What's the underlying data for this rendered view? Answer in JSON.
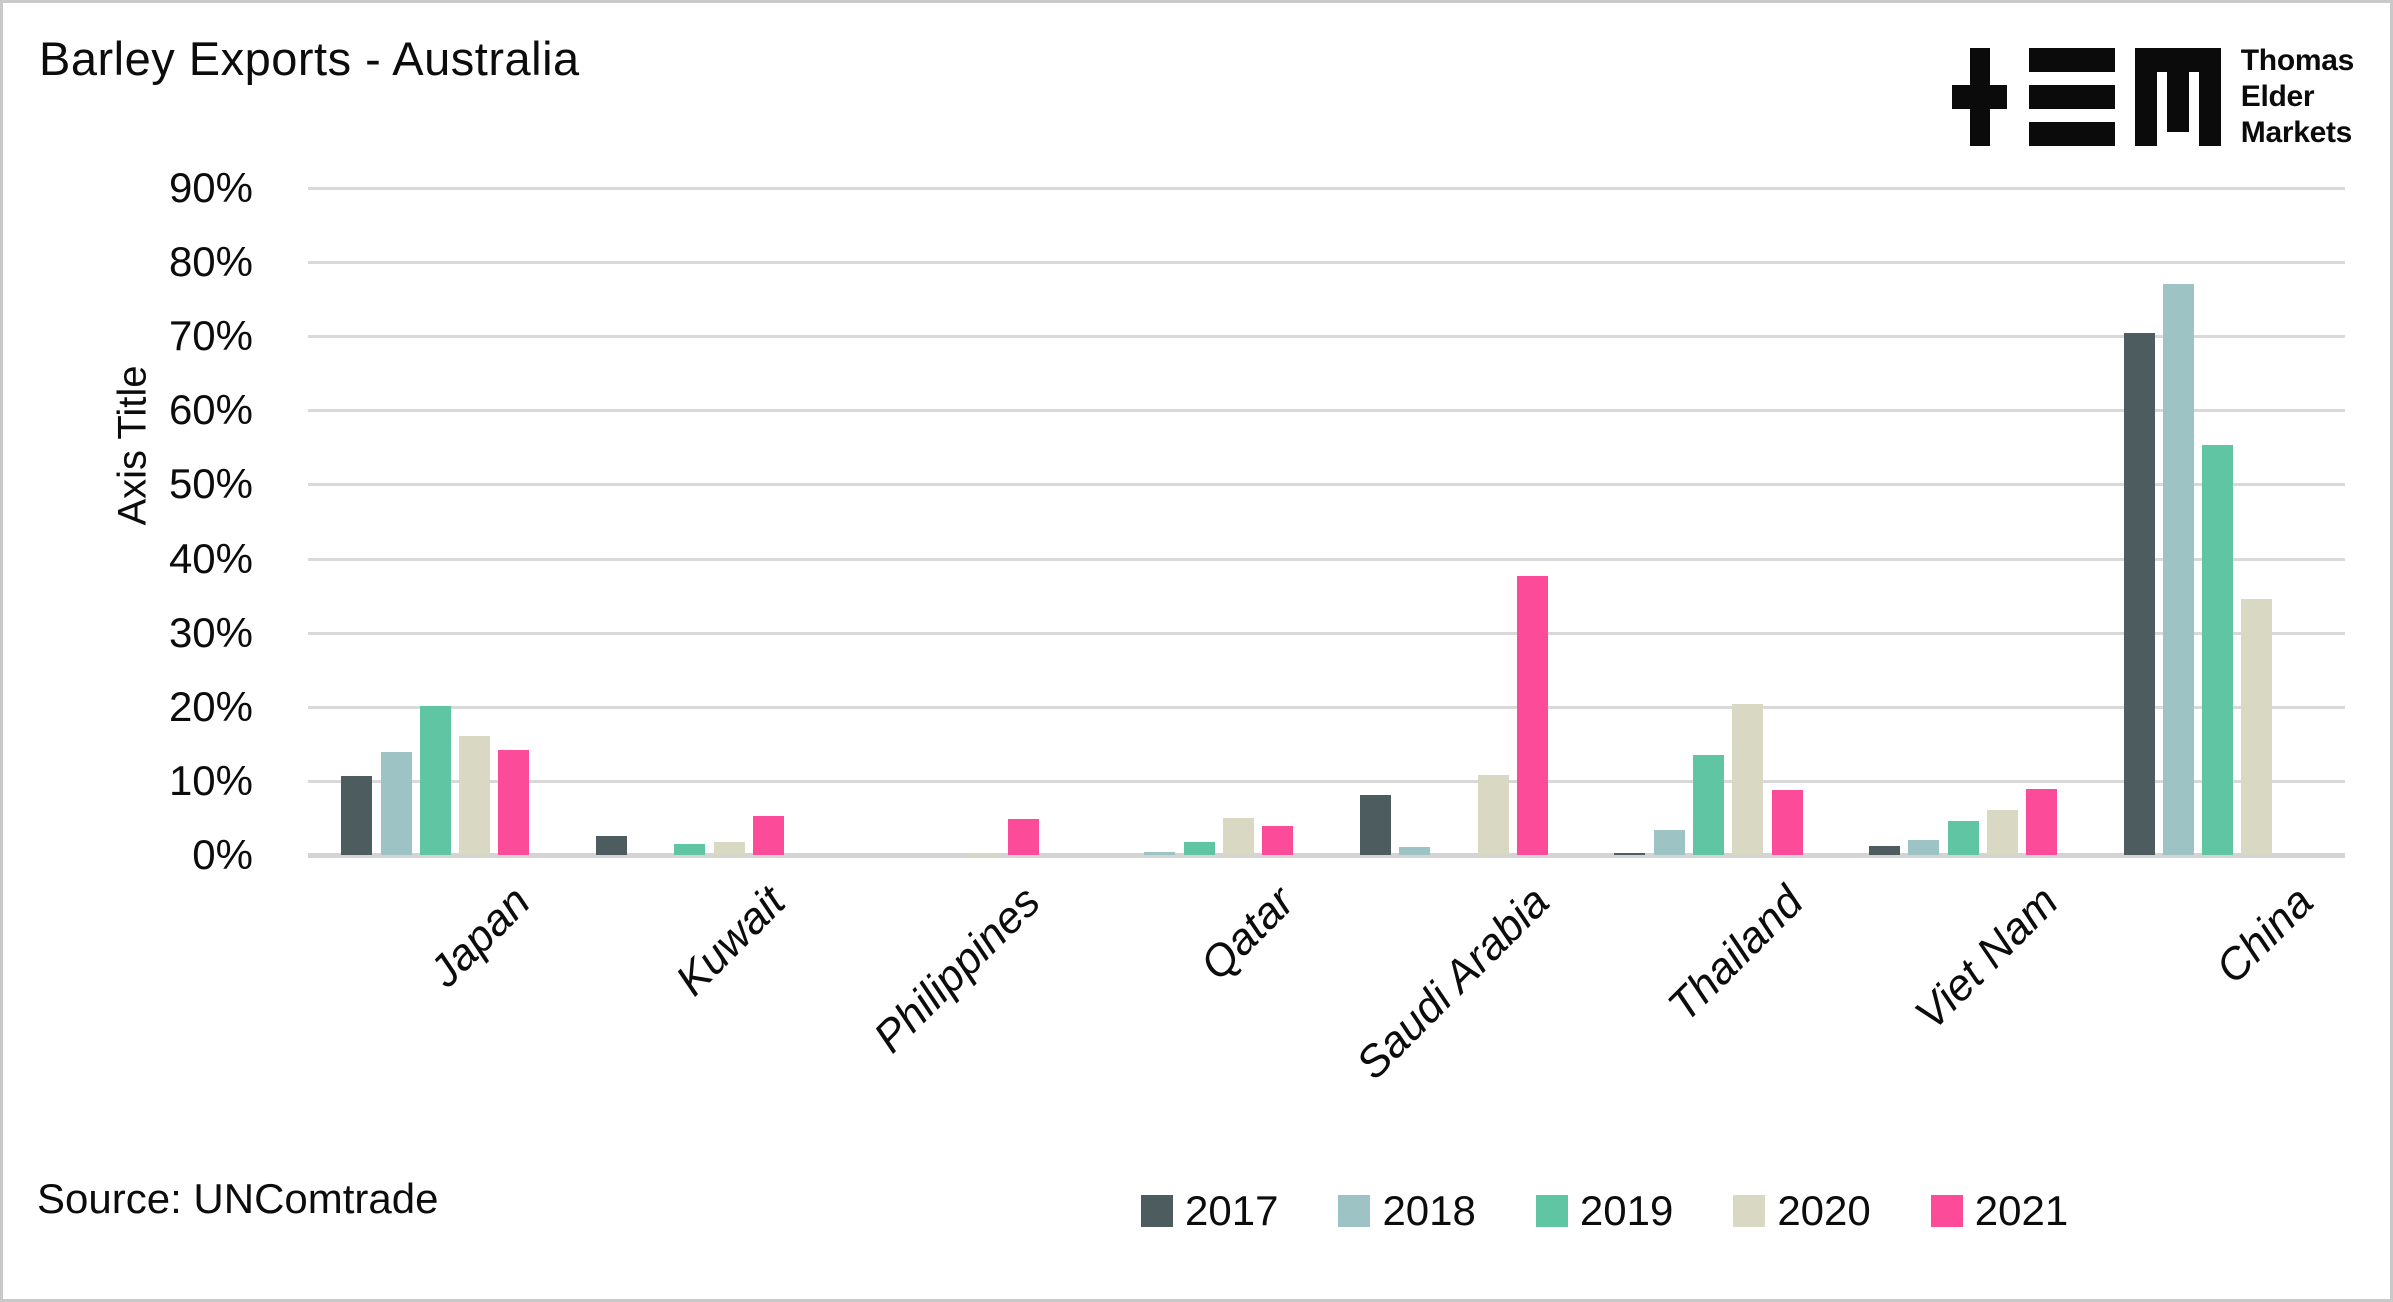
{
  "title": "Barley Exports - Australia",
  "source": "Source: UNComtrade",
  "logo": {
    "line1": "Thomas",
    "line2": "Elder",
    "line3": "Markets"
  },
  "chart_data": {
    "type": "bar",
    "title": "Barley Exports - Australia",
    "xlabel": "",
    "ylabel": "Axis Title",
    "ylim": [
      0,
      90
    ],
    "ytick_step": 10,
    "ytick_suffix": "%",
    "grid": "horizontal",
    "legend_position": "bottom",
    "categories": [
      "Japan",
      "Kuwait",
      "Philippines",
      "Qatar",
      "Saudi Arabia",
      "Thailand",
      "Viet Nam",
      "China"
    ],
    "series": [
      {
        "name": "2017",
        "color": "#4d5c5e",
        "values": [
          10.7,
          2.6,
          0,
          0,
          8.1,
          0.3,
          1.2,
          70.5
        ]
      },
      {
        "name": "2018",
        "color": "#9dc3c4",
        "values": [
          13.9,
          0,
          0,
          0.4,
          1.1,
          3.4,
          2.0,
          77.0
        ]
      },
      {
        "name": "2019",
        "color": "#60c5a3",
        "values": [
          20.1,
          1.5,
          0,
          1.8,
          0,
          13.5,
          4.6,
          55.3
        ]
      },
      {
        "name": "2020",
        "color": "#d9d9c3",
        "values": [
          16.1,
          1.8,
          0.3,
          5.0,
          10.8,
          20.4,
          6.1,
          34.6
        ]
      },
      {
        "name": "2021",
        "color": "#fc4b98",
        "values": [
          14.2,
          5.3,
          4.9,
          3.9,
          37.7,
          8.8,
          8.9,
          0
        ]
      }
    ]
  },
  "colors": {
    "gridline": "#d9d9d9",
    "axis_line": "#d4d4d4",
    "text": "#0c0c0c"
  }
}
